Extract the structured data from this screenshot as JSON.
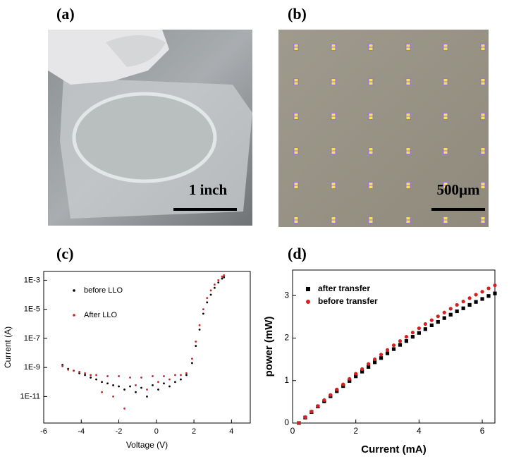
{
  "panels": {
    "a": {
      "label": "(a)",
      "scale_bar": "1 inch"
    },
    "b": {
      "label": "(b)",
      "scale_bar": "500µm"
    },
    "c": {
      "label": "(c)"
    },
    "d": {
      "label": "(d)"
    }
  },
  "chart_data": [
    {
      "type": "scatter",
      "log_y": true,
      "xlabel": "Voltage (V)",
      "ylabel": "Current (A)",
      "xlim": [
        -6,
        5
      ],
      "xticks": [
        -6,
        -4,
        -2,
        0,
        2,
        4
      ],
      "ylim": [
        1.5e-13,
        0.004
      ],
      "yticks": [
        {
          "value": 0.001,
          "label": "1E-3"
        },
        {
          "value": 1e-05,
          "label": "1E-5"
        },
        {
          "value": 1e-07,
          "label": "1E-7"
        },
        {
          "value": 1e-09,
          "label": "1E-9"
        },
        {
          "value": 1e-11,
          "label": "1E-11"
        }
      ],
      "legend": "upper left",
      "series": [
        {
          "name": "before LLO",
          "color": "#000000",
          "marker": "dot",
          "x": [
            -5,
            -4.7,
            -4.4,
            -4.1,
            -3.8,
            -3.5,
            -3.2,
            -2.9,
            -2.6,
            -2.3,
            -2,
            -1.7,
            -1.4,
            -1.1,
            -0.8,
            -0.5,
            -0.2,
            0.1,
            0.4,
            0.7,
            1,
            1.3,
            1.6,
            1.9,
            2.1,
            2.3,
            2.5,
            2.7,
            2.9,
            3.1,
            3.3,
            3.5,
            3.6
          ],
          "values": [
            1.5e-09,
            8e-10,
            6e-10,
            4e-10,
            3e-10,
            2e-10,
            1.5e-10,
            1e-10,
            8e-11,
            6e-11,
            5e-11,
            3e-11,
            5e-11,
            2e-11,
            4e-11,
            1e-11,
            6e-11,
            3e-11,
            8e-11,
            5e-11,
            1e-10,
            1.5e-10,
            3e-10,
            2e-09,
            3e-08,
            4e-07,
            5e-06,
            3e-05,
            0.0001,
            0.0003,
            0.0007,
            0.0013,
            0.0016
          ]
        },
        {
          "name": "After LLO",
          "color": "#d42020",
          "marker": "dot",
          "x": [
            -5,
            -4.7,
            -4.4,
            -4.1,
            -3.8,
            -3.5,
            -3.2,
            -2.9,
            -2.6,
            -2.3,
            -2,
            -1.7,
            -1.4,
            -1.1,
            -0.8,
            -0.5,
            -0.2,
            0.1,
            0.4,
            0.7,
            1,
            1.3,
            1.6,
            1.9,
            2.1,
            2.3,
            2.5,
            2.7,
            2.9,
            3.1,
            3.3,
            3.5,
            3.6
          ],
          "values": [
            1.2e-09,
            7e-10,
            6e-10,
            5e-10,
            4e-10,
            3e-10,
            3e-10,
            2e-11,
            2.5e-10,
            1e-11,
            2.5e-10,
            1.5e-12,
            2e-10,
            6e-11,
            2e-10,
            3e-11,
            2.5e-10,
            1e-10,
            2.5e-10,
            1.5e-10,
            3e-10,
            3e-10,
            4e-10,
            4e-09,
            6e-08,
            8e-07,
            1e-05,
            6e-05,
            0.0002,
            0.0005,
            0.001,
            0.0018,
            0.0022
          ]
        }
      ]
    },
    {
      "type": "scatter",
      "xlabel": "Current (mA)",
      "ylabel": "power (mW)",
      "xlim": [
        0,
        6.4
      ],
      "xticks": [
        0,
        2,
        4,
        6
      ],
      "ylim": [
        0,
        3.6
      ],
      "yticks": [
        0,
        1,
        2,
        3
      ],
      "legend": "upper left",
      "x": [
        0.2,
        0.4,
        0.6,
        0.8,
        1,
        1.2,
        1.4,
        1.6,
        1.8,
        2,
        2.2,
        2.4,
        2.6,
        2.8,
        3,
        3.2,
        3.4,
        3.6,
        3.8,
        4,
        4.2,
        4.4,
        4.6,
        4.8,
        5,
        5.2,
        5.4,
        5.6,
        5.8,
        6,
        6.2,
        6.4
      ],
      "series": [
        {
          "name": "after transfer",
          "color": "#000000",
          "marker": "square",
          "values": [
            0,
            0.13,
            0.26,
            0.39,
            0.51,
            0.63,
            0.75,
            0.87,
            0.99,
            1.1,
            1.21,
            1.32,
            1.43,
            1.53,
            1.64,
            1.74,
            1.84,
            1.93,
            2.03,
            2.12,
            2.21,
            2.3,
            2.38,
            2.47,
            2.55,
            2.63,
            2.7,
            2.78,
            2.85,
            2.92,
            2.99,
            3.05
          ]
        },
        {
          "name": "before transfer",
          "color": "#d42020",
          "marker": "circle",
          "values": [
            0,
            0.14,
            0.27,
            0.4,
            0.54,
            0.66,
            0.79,
            0.91,
            1.04,
            1.16,
            1.27,
            1.39,
            1.5,
            1.61,
            1.72,
            1.83,
            1.93,
            2.03,
            2.13,
            2.23,
            2.33,
            2.42,
            2.51,
            2.6,
            2.69,
            2.78,
            2.86,
            2.94,
            3.02,
            3.09,
            3.17,
            3.24
          ]
        }
      ]
    }
  ]
}
